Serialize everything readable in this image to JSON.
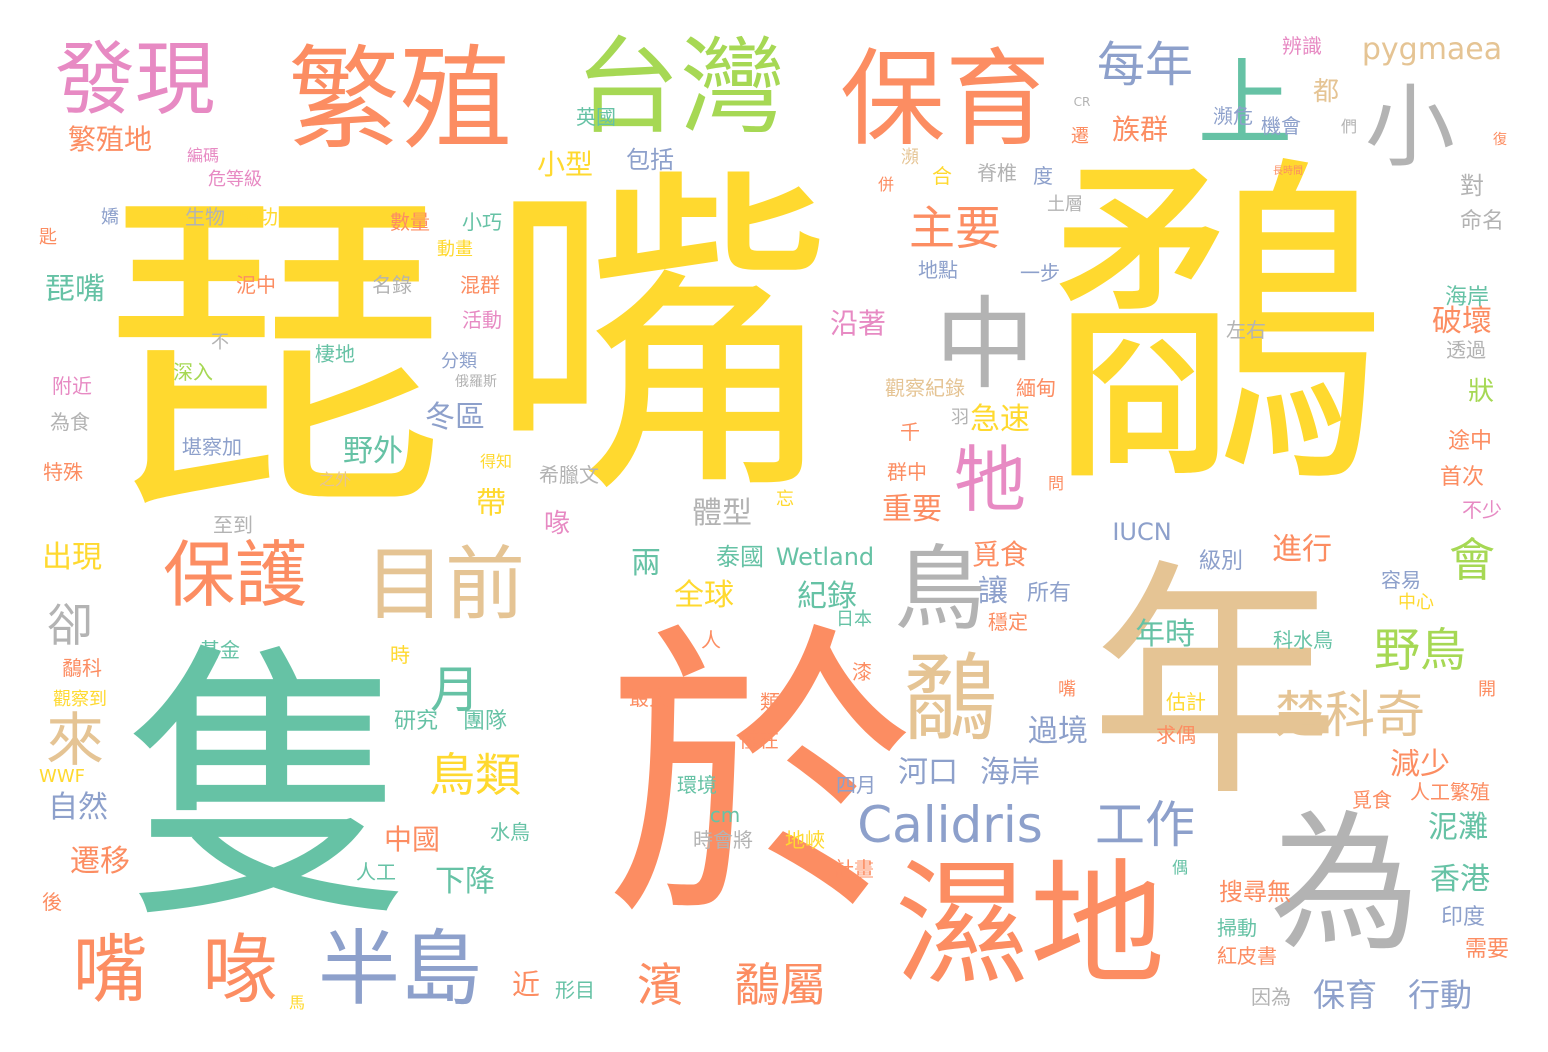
{
  "colors": {
    "yellow": "#ffd92f",
    "orange": "#fc8d62",
    "green": "#66c2a5",
    "blue": "#8da0cb",
    "pink": "#e78ac3",
    "lime": "#a6d854",
    "tan": "#e5c494",
    "gray": "#b3b3b3"
  },
  "words": [
    {
      "text": "琵",
      "color": "yellow"
    },
    {
      "text": "嘴",
      "color": "yellow"
    },
    {
      "text": "鷸",
      "color": "yellow"
    },
    {
      "text": "於",
      "color": "orange"
    },
    {
      "text": "隻",
      "color": "green"
    },
    {
      "text": "年",
      "color": "tan"
    },
    {
      "text": "為",
      "color": "gray"
    },
    {
      "text": "濕地",
      "color": "orange"
    },
    {
      "text": "繁殖",
      "color": "orange"
    },
    {
      "text": "台灣",
      "color": "lime"
    },
    {
      "text": "保育",
      "color": "orange"
    },
    {
      "text": "發現",
      "color": "pink"
    },
    {
      "text": "上",
      "color": "green"
    },
    {
      "text": "小",
      "color": "gray"
    },
    {
      "text": "中",
      "color": "gray"
    },
    {
      "text": "鳥",
      "color": "gray"
    },
    {
      "text": "目前",
      "color": "tan"
    },
    {
      "text": "保護",
      "color": "orange"
    },
    {
      "text": "鷸",
      "color": "tan"
    },
    {
      "text": "牠",
      "color": "pink"
    },
    {
      "text": "半島",
      "color": "blue"
    },
    {
      "text": "嘴",
      "color": "orange"
    },
    {
      "text": "喙",
      "color": "orange"
    },
    {
      "text": "Calidris",
      "color": "blue"
    },
    {
      "text": "工作",
      "color": "blue"
    },
    {
      "text": "楚科奇",
      "color": "tan"
    },
    {
      "text": "野鳥",
      "color": "lime"
    },
    {
      "text": "鳥類",
      "color": "yellow"
    },
    {
      "text": "濱",
      "color": "orange"
    },
    {
      "text": "鷸屬",
      "color": "orange"
    },
    {
      "text": "主要",
      "color": "orange"
    },
    {
      "text": "來",
      "color": "tan"
    },
    {
      "text": "月",
      "color": "green"
    },
    {
      "text": "每年",
      "color": "blue"
    },
    {
      "text": "會",
      "color": "lime"
    },
    {
      "text": "卻",
      "color": "gray"
    },
    {
      "text": "pygmaea",
      "color": "tan"
    },
    {
      "text": "保育",
      "color": "blue"
    },
    {
      "text": "行動",
      "color": "blue"
    },
    {
      "text": "繁殖地",
      "color": "orange"
    },
    {
      "text": "族群",
      "color": "orange"
    },
    {
      "text": "小型",
      "color": "yellow"
    },
    {
      "text": "英國",
      "color": "green"
    },
    {
      "text": "包括",
      "color": "blue"
    },
    {
      "text": "琵嘴",
      "color": "green"
    },
    {
      "text": "出現",
      "color": "yellow"
    },
    {
      "text": "自然",
      "color": "blue"
    },
    {
      "text": "遷移",
      "color": "orange"
    },
    {
      "text": "過境",
      "color": "blue"
    },
    {
      "text": "泥灘",
      "color": "green"
    },
    {
      "text": "香港",
      "color": "green"
    },
    {
      "text": "河口",
      "color": "blue"
    },
    {
      "text": "海岸",
      "color": "blue"
    },
    {
      "text": "重要",
      "color": "orange"
    },
    {
      "text": "進行",
      "color": "orange"
    },
    {
      "text": "紀錄",
      "color": "green"
    },
    {
      "text": "全球",
      "color": "yellow"
    },
    {
      "text": "破壞",
      "color": "orange"
    },
    {
      "text": "冬區",
      "color": "blue"
    },
    {
      "text": "野外",
      "color": "green"
    },
    {
      "text": "體型",
      "color": "gray"
    },
    {
      "text": "急速",
      "color": "yellow"
    },
    {
      "text": "年時",
      "color": "green"
    },
    {
      "text": "減少",
      "color": "orange"
    },
    {
      "text": "下降",
      "color": "green"
    },
    {
      "text": "中國",
      "color": "orange"
    },
    {
      "text": "沿著",
      "color": "pink"
    },
    {
      "text": "覓食",
      "color": "orange"
    },
    {
      "text": "讓",
      "color": "blue"
    },
    {
      "text": "帶",
      "color": "yellow"
    },
    {
      "text": "喙",
      "color": "pink"
    },
    {
      "text": "兩",
      "color": "green"
    },
    {
      "text": "近",
      "color": "orange"
    },
    {
      "text": "IUCN",
      "color": "blue"
    },
    {
      "text": "泰國",
      "color": "green"
    },
    {
      "text": "Wetland",
      "color": "green"
    },
    {
      "text": "都",
      "color": "tan"
    },
    {
      "text": "辨識",
      "color": "pink"
    },
    {
      "text": "瀕危",
      "color": "blue"
    },
    {
      "text": "機會",
      "color": "blue"
    },
    {
      "text": "狀",
      "color": "lime"
    },
    {
      "text": "對",
      "color": "gray"
    },
    {
      "text": "命名",
      "color": "gray"
    },
    {
      "text": "海岸",
      "color": "green"
    },
    {
      "text": "透過",
      "color": "gray"
    },
    {
      "text": "途中",
      "color": "orange"
    },
    {
      "text": "首次",
      "color": "orange"
    },
    {
      "text": "不少",
      "color": "pink"
    },
    {
      "text": "容易",
      "color": "blue"
    },
    {
      "text": "中心",
      "color": "yellow"
    },
    {
      "text": "人工繁殖",
      "color": "orange"
    },
    {
      "text": "覓食",
      "color": "orange"
    },
    {
      "text": "印度",
      "color": "blue"
    },
    {
      "text": "需要",
      "color": "orange"
    },
    {
      "text": "搜尋無",
      "color": "orange"
    },
    {
      "text": "掃動",
      "color": "green"
    },
    {
      "text": "紅皮書",
      "color": "orange"
    },
    {
      "text": "因為",
      "color": "gray"
    },
    {
      "text": "所有",
      "color": "blue"
    },
    {
      "text": "穩定",
      "color": "orange"
    },
    {
      "text": "級別",
      "color": "blue"
    },
    {
      "text": "科水鳥",
      "color": "green"
    },
    {
      "text": "估計",
      "color": "yellow"
    },
    {
      "text": "求偶",
      "color": "orange"
    },
    {
      "text": "研究",
      "color": "green"
    },
    {
      "text": "團隊",
      "color": "green"
    },
    {
      "text": "最大",
      "color": "orange"
    },
    {
      "text": "僅在",
      "color": "orange"
    },
    {
      "text": "四月",
      "color": "blue"
    },
    {
      "text": "環境",
      "color": "green"
    },
    {
      "text": "地峽",
      "color": "yellow"
    },
    {
      "text": "時會將",
      "color": "gray"
    },
    {
      "text": "計畫",
      "color": "orange"
    },
    {
      "text": "人工",
      "color": "green"
    },
    {
      "text": "水鳥",
      "color": "green"
    },
    {
      "text": "形目",
      "color": "green"
    },
    {
      "text": "瀕",
      "color": "tan"
    },
    {
      "text": "合",
      "color": "yellow"
    },
    {
      "text": "脊椎",
      "color": "gray"
    },
    {
      "text": "度",
      "color": "blue"
    },
    {
      "text": "土層",
      "color": "gray"
    },
    {
      "text": "生物",
      "color": "gray"
    },
    {
      "text": "成功",
      "color": "yellow"
    },
    {
      "text": "數量",
      "color": "orange"
    },
    {
      "text": "小巧",
      "color": "green"
    },
    {
      "text": "動畫",
      "color": "yellow"
    },
    {
      "text": "地點",
      "color": "blue"
    },
    {
      "text": "泥中",
      "color": "orange"
    },
    {
      "text": "混群",
      "color": "orange"
    },
    {
      "text": "名錄",
      "color": "gray"
    },
    {
      "text": "一步",
      "color": "blue"
    },
    {
      "text": "活動",
      "color": "pink"
    },
    {
      "text": "棲地",
      "color": "green"
    },
    {
      "text": "左右",
      "color": "gray"
    },
    {
      "text": "深入",
      "color": "lime"
    },
    {
      "text": "分類",
      "color": "blue"
    },
    {
      "text": "觀察紀錄",
      "color": "tan"
    },
    {
      "text": "緬甸",
      "color": "orange"
    },
    {
      "text": "堪察加",
      "color": "blue"
    },
    {
      "text": "希臘文",
      "color": "gray"
    },
    {
      "text": "得知",
      "color": "yellow"
    },
    {
      "text": "千",
      "color": "orange"
    },
    {
      "text": "群中",
      "color": "orange"
    },
    {
      "text": "羽",
      "color": "gray"
    },
    {
      "text": "為食",
      "color": "gray"
    },
    {
      "text": "特殊",
      "color": "orange"
    },
    {
      "text": "附近",
      "color": "pink"
    },
    {
      "text": "至到",
      "color": "gray"
    },
    {
      "text": "之外",
      "color": "tan"
    },
    {
      "text": "忘",
      "color": "yellow"
    },
    {
      "text": "基金",
      "color": "green"
    },
    {
      "text": "鷸科",
      "color": "orange"
    },
    {
      "text": "觀察到",
      "color": "yellow"
    },
    {
      "text": "WWF",
      "color": "yellow"
    },
    {
      "text": "時",
      "color": "yellow"
    },
    {
      "text": "人",
      "color": "orange"
    },
    {
      "text": "類",
      "color": "orange"
    },
    {
      "text": "日本",
      "color": "green"
    },
    {
      "text": "漆",
      "color": "orange"
    },
    {
      "text": "嘴",
      "color": "orange"
    },
    {
      "text": "後",
      "color": "orange"
    },
    {
      "text": "cm",
      "color": "green"
    },
    {
      "text": "危等級",
      "color": "pink"
    },
    {
      "text": "編碼",
      "color": "pink"
    },
    {
      "text": "開",
      "color": "orange"
    },
    {
      "text": "遷",
      "color": "orange"
    },
    {
      "text": "們",
      "color": "gray"
    },
    {
      "text": "CR",
      "color": "gray"
    },
    {
      "text": "匙",
      "color": "orange"
    },
    {
      "text": "嬌",
      "color": "blue"
    },
    {
      "text": "不",
      "color": "gray"
    },
    {
      "text": "併",
      "color": "orange"
    },
    {
      "text": "馬",
      "color": "yellow"
    },
    {
      "text": "偶",
      "color": "green"
    },
    {
      "text": "問",
      "color": "orange"
    },
    {
      "text": "復",
      "color": "orange"
    },
    {
      "text": "俄羅斯",
      "color": "gray"
    },
    {
      "text": "長時間",
      "color": "orange"
    }
  ]
}
